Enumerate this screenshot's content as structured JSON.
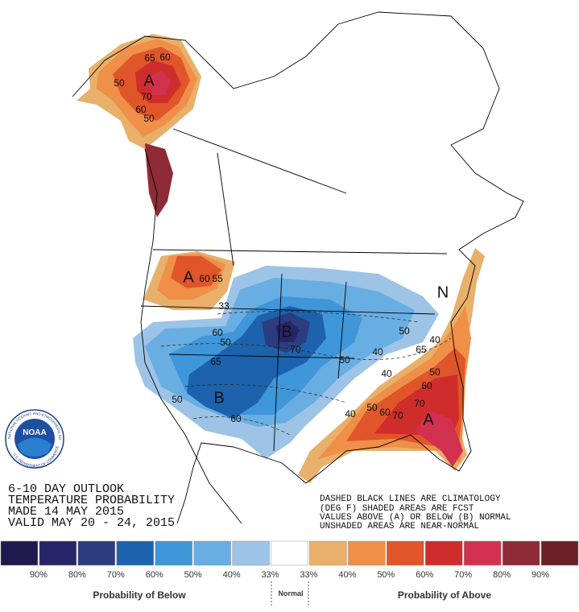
{
  "outlook": {
    "lines": [
      "6-10 DAY OUTLOOK",
      "TEMPERATURE PROBABILITY",
      "MADE  14 MAY 2015",
      "VALID  MAY 20 - 24, 2015"
    ]
  },
  "notes": [
    "DASHED BLACK LINES ARE CLIMATOLOGY",
    "(DEG F) SHADED AREAS ARE FCST",
    "VALUES ABOVE (A) OR BELOW (B) NORMAL",
    "UNSHADED AREAS ARE NEAR-NORMAL"
  ],
  "logo": {
    "name": "NOAA",
    "agency": "NATIONAL OCEANIC AND ATMOSPHERIC ADMINISTRATION",
    "department": "U.S. DEPARTMENT OF COMMERCE"
  },
  "map_labels": [
    "A",
    "50",
    "60",
    "65",
    "60",
    "70",
    "50",
    "A",
    "60",
    "55",
    "B",
    "70",
    "50",
    "40",
    "33",
    "60",
    "50",
    "65",
    "B",
    "60",
    "N",
    "65",
    "40",
    "50",
    "60",
    "70",
    "A",
    "40",
    "50",
    "60",
    "70",
    "40",
    "50",
    "50"
  ],
  "legend": {
    "colors": [
      "#1f1a4d",
      "#282468",
      "#2c3d7f",
      "#1c62ad",
      "#3f96d9",
      "#69aee2",
      "#9dc3e6",
      "#ffffff",
      "#e8b06a",
      "#ef8f48",
      "#e0552a",
      "#cf2c2c",
      "#d1314f",
      "#8f2a37",
      "#6b1f26"
    ],
    "labels": [
      "90%",
      "80%",
      "70%",
      "60%",
      "50%",
      "40%",
      "33%",
      "33%",
      "40%",
      "50%",
      "60%",
      "70%",
      "80%",
      "90%"
    ],
    "below": "Probability of Below",
    "normal": "Normal",
    "above": "Probability of Above"
  }
}
